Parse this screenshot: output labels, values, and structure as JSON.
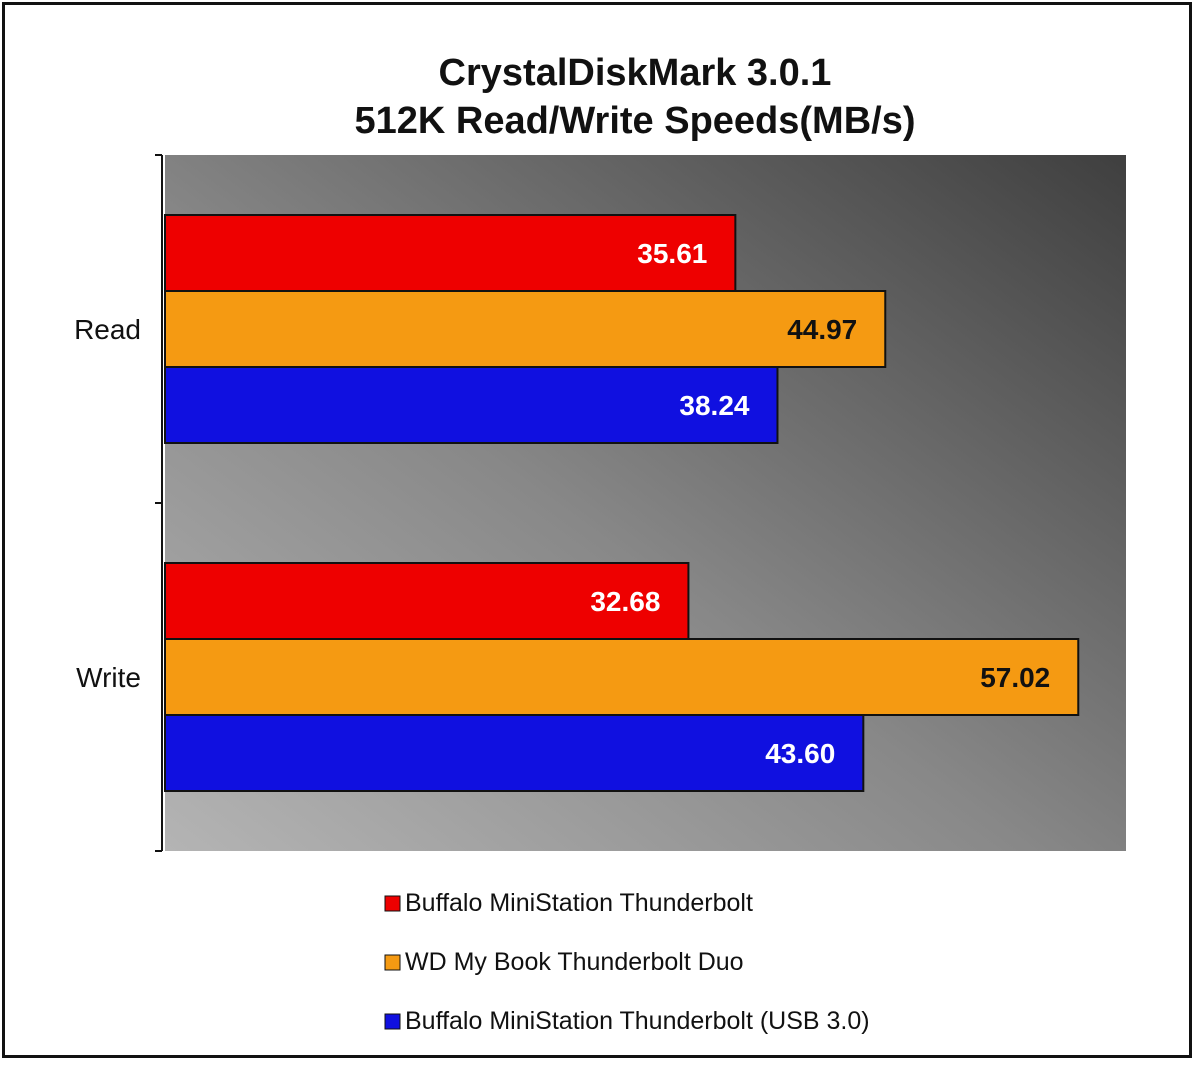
{
  "chart_data": {
    "type": "bar",
    "orientation": "horizontal",
    "title": "CrystalDiskMark 3.0.1",
    "subtitle": "512K Read/Write Speeds(MB/s)",
    "categories": [
      "Read",
      "Write"
    ],
    "series": [
      {
        "name": "Buffalo MiniStation Thunderbolt",
        "values": [
          35.61,
          32.68
        ],
        "color": "#ee0000",
        "label_color": "#ffffff"
      },
      {
        "name": "WD My Book Thunderbolt Duo",
        "values": [
          44.97,
          57.02
        ],
        "color": "#f59a12",
        "label_color": "#111111"
      },
      {
        "name": "Buffalo MiniStation Thunderbolt (USB 3.0)",
        "values": [
          38.24,
          43.6
        ],
        "color": "#1010e0",
        "label_color": "#ffffff"
      }
    ],
    "value_labels": [
      [
        "35.61",
        "32.68"
      ],
      [
        "44.97",
        "57.02"
      ],
      [
        "38.24",
        "43.60"
      ]
    ],
    "xlim": [
      0,
      60
    ],
    "grid": false,
    "legend_position": "bottom",
    "plot_background": "gradient-gray"
  }
}
